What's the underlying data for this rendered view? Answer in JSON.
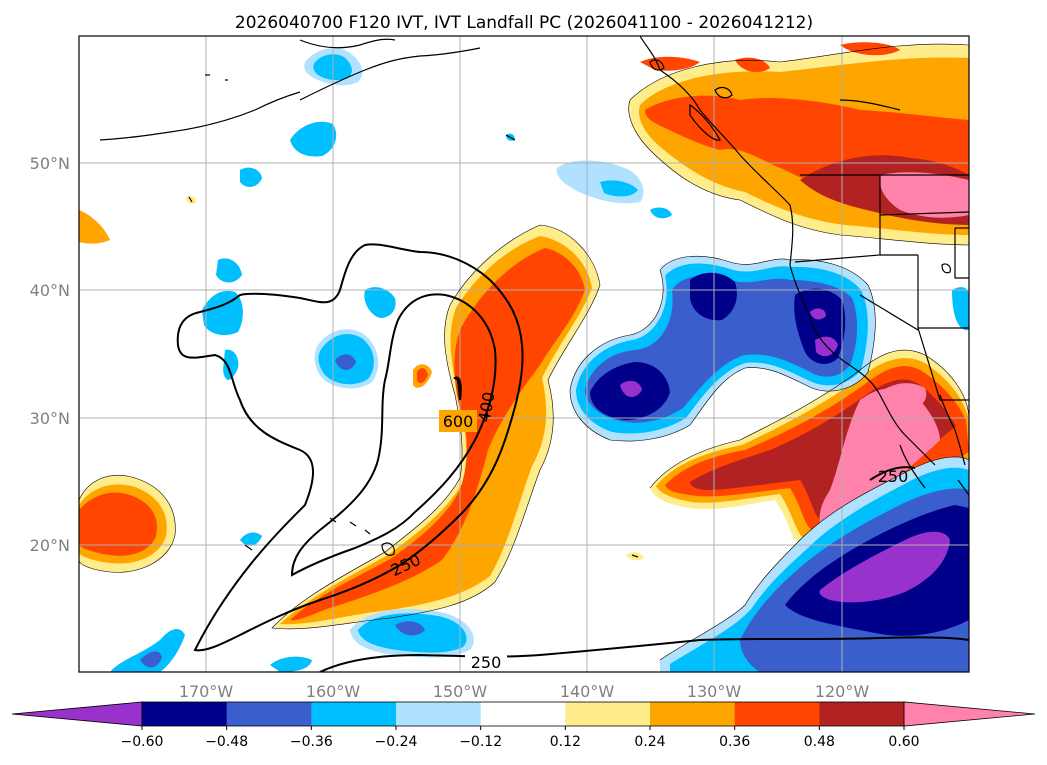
{
  "title": "2026040700 F120 IVT, IVT Landfall PC (2026041100 - 2026041212)",
  "map": {
    "projection": "PlateCarree",
    "lon_range": [
      -180,
      -108
    ],
    "lat_range": [
      10,
      60
    ],
    "lon_ticks": [
      "170°W",
      "160°W",
      "150°W",
      "140°W",
      "130°W",
      "120°W"
    ],
    "lat_ticks": [
      "20°N",
      "30°N",
      "40°N",
      "50°N"
    ],
    "gridlines": true,
    "field": "IVT Landfall PC (shaded)",
    "contours": "IVT (black lines)",
    "contour_labels": [
      "600",
      "400",
      "250",
      "250",
      "250"
    ]
  },
  "colorbar": {
    "orientation": "horizontal",
    "extend": "both",
    "tick_labels": [
      "−0.60",
      "−0.48",
      "−0.36",
      "−0.24",
      "−0.12",
      "0.12",
      "0.24",
      "0.36",
      "0.48",
      "0.60"
    ],
    "colors": [
      "#9932cc",
      "#00008b",
      "#3a5fcd",
      "#00bfff",
      "#b0e2ff",
      "#ffffff",
      "#ffec8b",
      "#ffa500",
      "#ff4500",
      "#b22222",
      "#ff82ab"
    ]
  }
}
